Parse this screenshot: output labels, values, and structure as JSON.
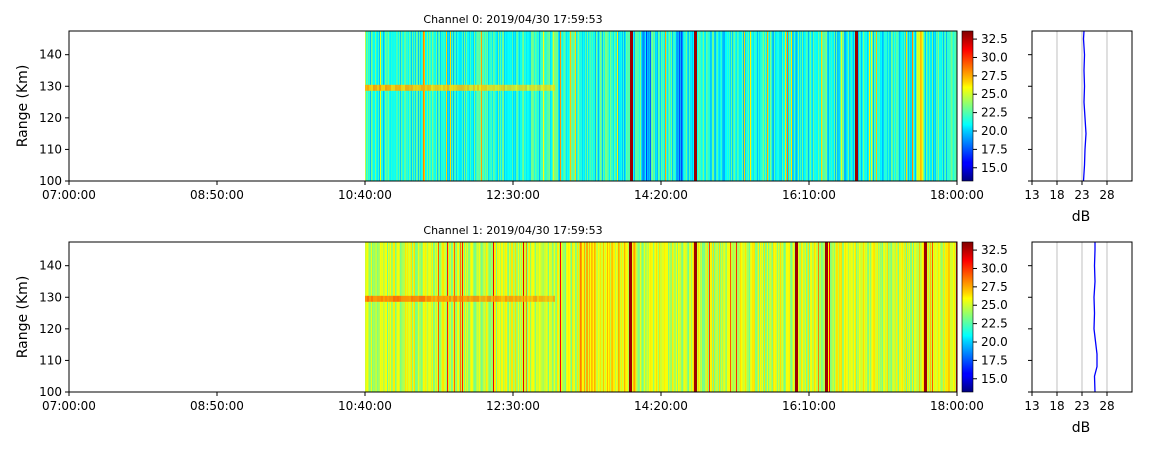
{
  "chart_data": [
    {
      "type": "heatmap",
      "title": "Channel 0: 2019/04/30 17:59:53",
      "ylabel": "Range (Km)",
      "xlabel": "",
      "x_tick_labels": [
        "07:00:00",
        "08:50:00",
        "10:40:00",
        "12:30:00",
        "14:20:00",
        "16:10:00",
        "18:00:00"
      ],
      "xlim": [
        "07:00:00",
        "18:00:00"
      ],
      "y_ticks": [
        100,
        110,
        120,
        130,
        140
      ],
      "ylim": [
        100,
        147.5
      ],
      "data_start": "10:40:00",
      "bright_band_range_km": 129.5,
      "strong_vertical_lines_at": [
        "13:58:00",
        "14:45:00",
        "16:45:00"
      ],
      "colormap": "jet",
      "colorbar": {
        "ticks": [
          "15.0",
          "17.5",
          "20.0",
          "22.5",
          "25.0",
          "27.5",
          "30.0",
          "32.5"
        ],
        "range": [
          13.2,
          33.6
        ]
      },
      "profile": {
        "xlabel": "dB",
        "x_ticks": [
          13,
          18,
          23,
          28
        ],
        "xlim": [
          13,
          33
        ],
        "ylim": [
          100,
          147.5
        ],
        "grid": true,
        "line_color": "#0000ff",
        "range_km": [
          100,
          105,
          110,
          115,
          120,
          125,
          130,
          135,
          140,
          145,
          147.5
        ],
        "db": [
          23.3,
          23.5,
          23.6,
          23.8,
          23.6,
          23.4,
          23.5,
          23.4,
          23.5,
          23.3,
          23.4
        ]
      }
    },
    {
      "type": "heatmap",
      "title": "Channel 1: 2019/04/30 17:59:53",
      "ylabel": "Range (Km)",
      "xlabel": "",
      "x_tick_labels": [
        "07:00:00",
        "08:50:00",
        "10:40:00",
        "12:30:00",
        "14:20:00",
        "16:10:00",
        "18:00:00"
      ],
      "xlim": [
        "07:00:00",
        "18:00:00"
      ],
      "y_ticks": [
        100,
        110,
        120,
        130,
        140
      ],
      "ylim": [
        100,
        147.5
      ],
      "data_start": "10:40:00",
      "bright_band_range_km": 129.5,
      "strong_vertical_lines_at": [
        "13:57:00",
        "14:45:00",
        "16:00:00",
        "16:23:00",
        "17:36:00"
      ],
      "colormap": "jet",
      "colorbar": {
        "ticks": [
          "15.0",
          "17.5",
          "20.0",
          "22.5",
          "25.0",
          "27.5",
          "30.0",
          "32.5"
        ],
        "range": [
          13.2,
          33.6
        ]
      },
      "profile": {
        "xlabel": "dB",
        "x_ticks": [
          13,
          18,
          23,
          28
        ],
        "xlim": [
          13,
          33
        ],
        "ylim": [
          100,
          147.5
        ],
        "grid": true,
        "line_color": "#0000ff",
        "range_km": [
          100,
          105,
          108,
          112,
          116,
          120,
          125,
          130,
          135,
          140,
          145,
          147.5
        ],
        "db": [
          25.6,
          25.5,
          26.0,
          26.0,
          25.7,
          25.4,
          25.5,
          25.4,
          25.6,
          25.5,
          25.6,
          25.6
        ]
      }
    }
  ]
}
